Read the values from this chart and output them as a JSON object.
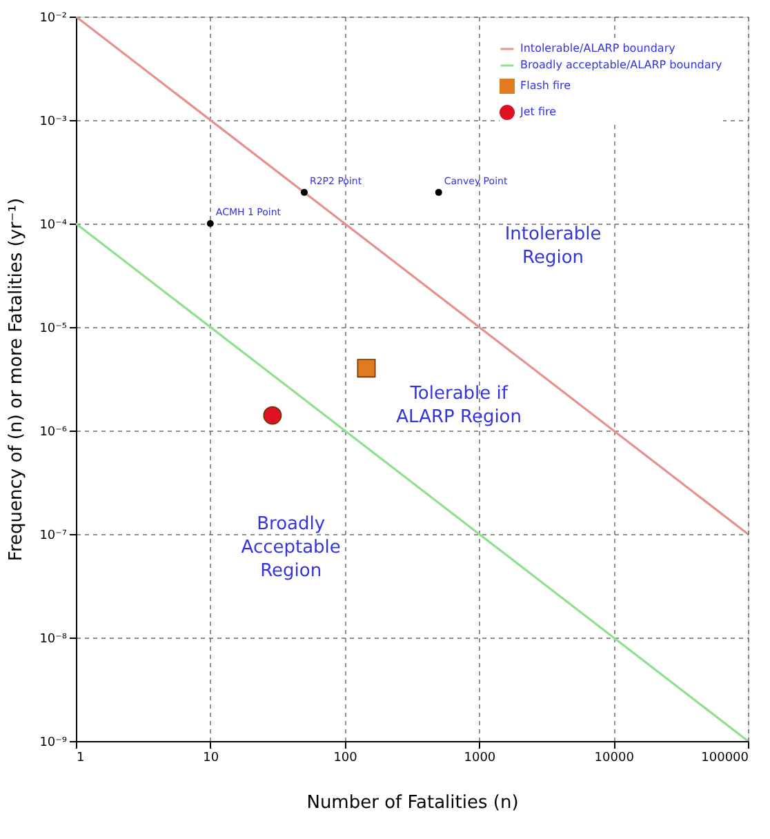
{
  "chart_data": {
    "type": "line",
    "xlabel": "Number of Fatalities (n)",
    "ylabel": "Frequency of (n) or more Fatalities (yr⁻¹)",
    "log": "xy",
    "xlim": [
      1,
      100000
    ],
    "xticks": [
      1,
      10,
      100,
      1000,
      10000,
      100000
    ],
    "ylim": [
      1e-09,
      0.01
    ],
    "yticks": [
      {
        "value": 1e-09,
        "label": "10⁻⁹"
      },
      {
        "value": 1e-08,
        "label": "10⁻⁸"
      },
      {
        "value": 1e-07,
        "label": "10⁻⁷"
      },
      {
        "value": 1e-06,
        "label": "10⁻⁶"
      },
      {
        "value": 1e-05,
        "label": "10⁻⁵"
      },
      {
        "value": 0.0001,
        "label": "10⁻⁴"
      },
      {
        "value": 0.001,
        "label": "10⁻³"
      },
      {
        "value": 0.01,
        "label": "10⁻²"
      }
    ],
    "grid": true,
    "legend": "top right",
    "series": [
      {
        "name": "Intolerable/ALARP boundary",
        "color": "#e89090",
        "line_style": "solid",
        "x": [
          1,
          100000
        ],
        "values": [
          0.01,
          1e-07
        ]
      },
      {
        "name": "Broadly acceptable/ALARP boundary",
        "color": "#90e090",
        "line_style": "solid",
        "x": [
          1,
          100000
        ],
        "values": [
          0.0001,
          1e-09
        ]
      },
      {
        "name": "Flash fire",
        "type": "scatter",
        "marker": "square",
        "color": "#e07b20",
        "x": [
          145
        ],
        "values": [
          4e-06
        ]
      },
      {
        "name": "Jet fire",
        "type": "scatter",
        "marker": "circle",
        "color": "#dd1122",
        "x": [
          29
        ],
        "values": [
          1.4e-06
        ]
      },
      {
        "type": "scatter",
        "marker": "circle",
        "color": "#000000",
        "x": [
          10,
          50,
          500
        ],
        "values": [
          0.0001,
          0.0002,
          0.0002
        ]
      }
    ],
    "annotations": [
      {
        "text": "ACMH 1 Point",
        "x": 10,
        "y": 0.0001
      },
      {
        "text": "R2P2 Point",
        "x": 50,
        "y": 0.0002
      },
      {
        "text": "Canvey Point",
        "x": 500,
        "y": 0.0002
      },
      "Intolerable Region",
      "Tolerable if ALARP Region",
      "Broadly Acceptable Region"
    ]
  }
}
